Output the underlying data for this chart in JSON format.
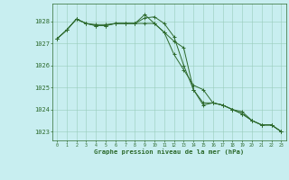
{
  "title": "Graphe pression niveau de la mer (hPa)",
  "background_color": "#c8eef0",
  "plot_background": "#c8eef0",
  "grid_color": "#99ccbb",
  "line_color": "#2d6a2d",
  "marker_color": "#2d6a2d",
  "xlim": [
    -0.5,
    23.5
  ],
  "ylim": [
    1022.6,
    1028.8
  ],
  "yticks": [
    1023,
    1024,
    1025,
    1026,
    1027,
    1028
  ],
  "xticks": [
    0,
    1,
    2,
    3,
    4,
    5,
    6,
    7,
    8,
    9,
    10,
    11,
    12,
    13,
    14,
    15,
    16,
    17,
    18,
    19,
    20,
    21,
    22,
    23
  ],
  "series": [
    [
      1027.2,
      1027.6,
      1028.1,
      1027.9,
      1027.8,
      1027.8,
      1027.9,
      1027.9,
      1027.9,
      1028.3,
      1027.9,
      1027.5,
      1027.1,
      1026.8,
      1024.9,
      1024.3,
      1024.3,
      1024.2,
      1024.0,
      1023.8,
      1023.5,
      1023.3,
      1023.3,
      1023.0
    ],
    [
      1027.2,
      1027.6,
      1028.1,
      1027.9,
      1027.8,
      1027.8,
      1027.9,
      1027.9,
      1027.9,
      1027.9,
      1027.9,
      1027.5,
      1026.5,
      1025.8,
      1025.1,
      1024.9,
      1024.3,
      1024.2,
      1024.0,
      1023.9,
      1023.5,
      1023.3,
      1023.3,
      1023.0
    ],
    [
      1027.2,
      1027.6,
      1028.1,
      1027.9,
      1027.85,
      1027.85,
      1027.9,
      1027.9,
      1027.9,
      1028.15,
      1028.2,
      1027.9,
      1027.3,
      1026.0,
      1024.9,
      1024.2,
      1024.3,
      1024.2,
      1024.0,
      1023.8,
      1023.5,
      1023.3,
      1023.3,
      1023.0
    ]
  ]
}
